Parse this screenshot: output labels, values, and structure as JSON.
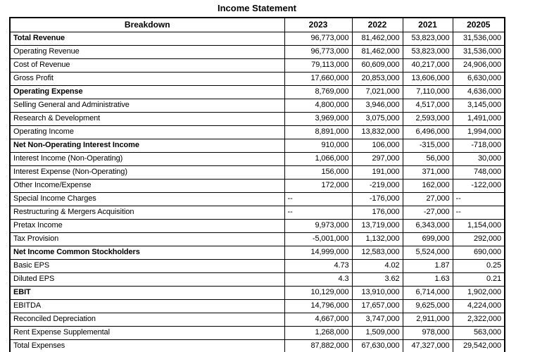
{
  "title": "Income Statement",
  "table": {
    "columns": [
      "Breakdown",
      "2023",
      "2022",
      "2021",
      "20205"
    ],
    "rows": [
      {
        "label": "Total Revenue",
        "bold": true,
        "values": [
          "96,773,000",
          "81,462,000",
          "53,823,000",
          "31,536,000"
        ]
      },
      {
        "label": "Operating Revenue",
        "bold": false,
        "values": [
          "96,773,000",
          "81,462,000",
          "53,823,000",
          "31,536,000"
        ]
      },
      {
        "label": "Cost of Revenue",
        "bold": false,
        "values": [
          "79,113,000",
          "60,609,000",
          "40,217,000",
          "24,906,000"
        ]
      },
      {
        "label": "Gross Profit",
        "bold": false,
        "values": [
          "17,660,000",
          "20,853,000",
          "13,606,000",
          "6,630,000"
        ]
      },
      {
        "label": "Operating Expense",
        "bold": true,
        "values": [
          "8,769,000",
          "7,021,000",
          "7,110,000",
          "4,636,000"
        ]
      },
      {
        "label": "Selling General and Administrative",
        "bold": false,
        "values": [
          "4,800,000",
          "3,946,000",
          "4,517,000",
          "3,145,000"
        ]
      },
      {
        "label": "Research & Development",
        "bold": false,
        "values": [
          "3,969,000",
          "3,075,000",
          "2,593,000",
          "1,491,000"
        ]
      },
      {
        "label": "Operating Income",
        "bold": false,
        "values": [
          "8,891,000",
          "13,832,000",
          "6,496,000",
          "1,994,000"
        ]
      },
      {
        "label": "Net Non-Operating Interest Income",
        "bold": true,
        "values": [
          "910,000",
          "106,000",
          "-315,000",
          "-718,000"
        ]
      },
      {
        "label": "Interest Income (Non-Operating)",
        "bold": false,
        "values": [
          "1,066,000",
          "297,000",
          "56,000",
          "30,000"
        ]
      },
      {
        "label": "Interest Expense (Non-Operating)",
        "bold": false,
        "values": [
          "156,000",
          "191,000",
          "371,000",
          "748,000"
        ]
      },
      {
        "label": "Other Income/Expense",
        "bold": false,
        "values": [
          "172,000",
          "-219,000",
          "162,000",
          "-122,000"
        ]
      },
      {
        "label": "Special Income Charges",
        "bold": false,
        "values": [
          "--",
          "-176,000",
          "27,000",
          "--"
        ]
      },
      {
        "label": "Restructuring & Mergers Acquisition",
        "bold": false,
        "values": [
          "--",
          "176,000",
          "-27,000",
          "--"
        ]
      },
      {
        "label": "Pretax Income",
        "bold": false,
        "values": [
          "9,973,000",
          "13,719,000",
          "6,343,000",
          "1,154,000"
        ]
      },
      {
        "label": "Tax Provision",
        "bold": false,
        "values": [
          "-5,001,000",
          "1,132,000",
          "699,000",
          "292,000"
        ]
      },
      {
        "label": "Net Income Common Stockholders",
        "bold": true,
        "values": [
          "14,999,000",
          "12,583,000",
          "5,524,000",
          "690,000"
        ]
      },
      {
        "label": "Basic EPS",
        "bold": false,
        "values": [
          "4.73",
          "4.02",
          "1.87",
          "0.25"
        ]
      },
      {
        "label": "Diluted EPS",
        "bold": false,
        "values": [
          "4.3",
          "3.62",
          "1.63",
          "0.21"
        ]
      },
      {
        "label": "EBIT",
        "bold": true,
        "values": [
          "10,129,000",
          "13,910,000",
          "6,714,000",
          "1,902,000"
        ]
      },
      {
        "label": "EBITDA",
        "bold": false,
        "values": [
          "14,796,000",
          "17,657,000",
          "9,625,000",
          "4,224,000"
        ]
      },
      {
        "label": "Reconciled Depreciation",
        "bold": false,
        "values": [
          "4,667,000",
          "3,747,000",
          "2,911,000",
          "2,322,000"
        ]
      },
      {
        "label": "Rent Expense Supplemental",
        "bold": false,
        "values": [
          "1,268,000",
          "1,509,000",
          "978,000",
          "563,000"
        ]
      },
      {
        "label": "Total Expenses",
        "bold": false,
        "values": [
          "87,882,000",
          "67,630,000",
          "47,327,000",
          "29,542,000"
        ]
      }
    ]
  }
}
